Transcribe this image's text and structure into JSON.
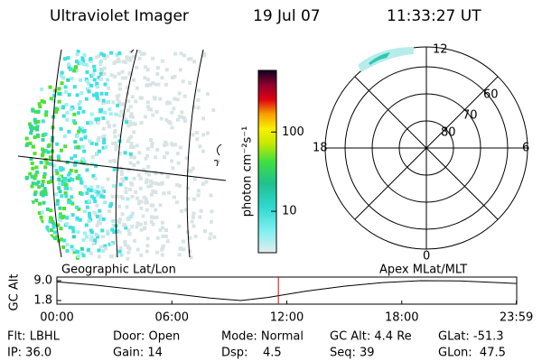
{
  "header": {
    "title": "Ultraviolet Imager",
    "date": "19 Jul 07",
    "time": "11:33:27 UT"
  },
  "colorbar": {
    "label": "photon cm⁻²s⁻¹",
    "scale": "log",
    "lim": [
      3,
      600
    ],
    "ticks": [
      10,
      100
    ]
  },
  "polar": {
    "mlt_labels": [
      "12",
      "18",
      "6",
      "0"
    ],
    "lat_labels": [
      "60",
      "70",
      "80"
    ]
  },
  "timeline": {
    "left_label": "Geographic Lat/Lon",
    "right_label": "Apex MLat/MLT",
    "ylabel": "GC Alt",
    "ylim": [
      1.8,
      9.0
    ],
    "yticks": [
      {
        "value": 9,
        "label": "9.0"
      },
      {
        "value": 1.8,
        "label": "1.8"
      }
    ],
    "xlim": [
      0,
      24
    ],
    "xticks": [
      {
        "value": 0,
        "label": "00:00"
      },
      {
        "value": 6,
        "label": "06:00"
      },
      {
        "value": 12,
        "label": "12:00"
      },
      {
        "value": 18,
        "label": "18:00"
      },
      {
        "value": 23.98,
        "label": "23:59"
      }
    ],
    "x": [
      0,
      2,
      4,
      6,
      8,
      9.6,
      11,
      13,
      15,
      17,
      19,
      21,
      23,
      23.98
    ],
    "altitude": [
      8.6,
      7.4,
      5.9,
      4.3,
      2.7,
      1.8,
      2.9,
      5.2,
      7.0,
      8.3,
      9.0,
      8.9,
      8.3,
      8.0
    ],
    "current_time": 11.56,
    "current_color": "#e00000"
  },
  "status": [
    [
      "Flt: LBHL",
      "Door: Open",
      "Mode: Normal",
      "GC Alt: 4.4 Re",
      "GLat: -51.3"
    ],
    [
      "IP: 36.0",
      "Gain: 14",
      "Dsp:    4.5",
      "Seq: 39",
      "GLon:  47.5"
    ]
  ]
}
